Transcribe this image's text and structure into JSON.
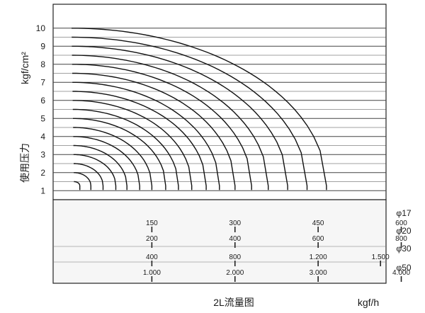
{
  "chart_data": {
    "type": "line",
    "title": "",
    "ylabel_unit": "kgf/cm²",
    "ylabel": "使用压力",
    "xlabel": "2L流量图",
    "xunit": "kgf/h",
    "ylim": [
      1,
      10
    ],
    "yticks": [
      "1",
      "2",
      "3",
      "4",
      "5",
      "6",
      "7",
      "8",
      "9",
      "10"
    ],
    "grid": true,
    "curve_pressures": [
      1.5,
      2,
      2.5,
      3,
      3.5,
      4,
      4.5,
      5,
      5.5,
      6,
      6.5,
      7,
      7.5,
      8,
      8.5,
      9,
      9.5,
      10
    ],
    "curve_max_flow_phi17": [
      20,
      40,
      62,
      85,
      105,
      128,
      150,
      175,
      198,
      222,
      248,
      272,
      300,
      330,
      360,
      395,
      430,
      465
    ],
    "flow_scales": [
      {
        "diameter": "φ17",
        "ticks": [
          150,
          300,
          450,
          600
        ],
        "labels": [
          "150",
          "300",
          "450",
          "600"
        ]
      },
      {
        "diameter": "φ20",
        "ticks": [
          200,
          400,
          600,
          800
        ],
        "labels": [
          "200",
          "400",
          "600",
          "800"
        ]
      },
      {
        "diameter": "φ30",
        "ticks": [
          400,
          800,
          1200,
          1500
        ],
        "labels": [
          "400",
          "800",
          "1.200",
          "1.500"
        ]
      },
      {
        "diameter": "φ50",
        "ticks": [
          1000,
          2000,
          3000,
          4000
        ],
        "labels": [
          "1.000",
          "2.000",
          "3.000",
          "4.000"
        ]
      }
    ]
  }
}
